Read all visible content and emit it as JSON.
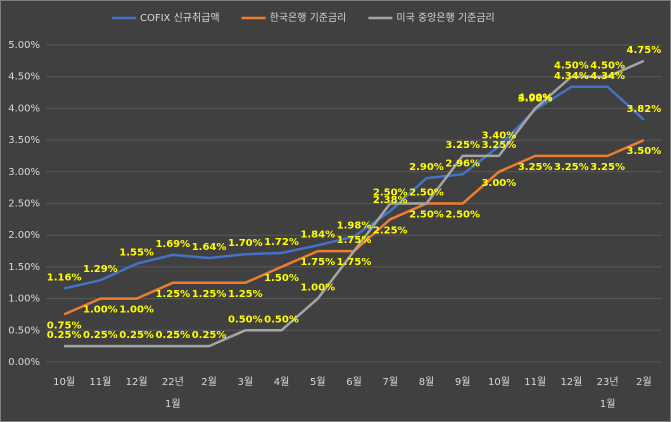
{
  "chart_data": {
    "type": "line",
    "categories": [
      "10월",
      "11월",
      "12월",
      [
        "22년",
        "1월"
      ],
      "2월",
      "3월",
      "4월",
      "5월",
      "6월",
      "7월",
      "8월",
      "9월",
      "10월",
      "11월",
      "12월",
      [
        "23년",
        "1월"
      ],
      "2월"
    ],
    "series": [
      {
        "name": "COFIX 신규취급액",
        "color": "#4472c4",
        "values": [
          1.16,
          1.29,
          1.55,
          1.69,
          1.64,
          1.7,
          1.72,
          1.84,
          1.98,
          2.38,
          2.9,
          2.96,
          3.4,
          3.98,
          4.34,
          4.34,
          3.82
        ],
        "value_labels": [
          "1.16%",
          "1.29%",
          "1.55%",
          "1.69%",
          "1.64%",
          "1.70%",
          "1.72%",
          "1.84%",
          "1.98%",
          "2.38%",
          "2.90%",
          "2.96%",
          "3.40%",
          "3.98%",
          "4.34%",
          "4.34%",
          "3.82%"
        ]
      },
      {
        "name": "한국은행 기준금리",
        "color": "#ed7d31",
        "values": [
          0.75,
          1.0,
          1.0,
          1.25,
          1.25,
          1.25,
          1.5,
          1.75,
          1.75,
          2.25,
          2.5,
          2.5,
          3.0,
          3.25,
          3.25,
          3.25,
          3.5
        ],
        "value_labels": [
          "0.75%",
          "1.00%",
          "1.00%",
          "1.25%",
          "1.25%",
          "1.25%",
          "1.50%",
          "1.75%",
          "1.75%",
          "2.25%",
          "2.50%",
          "2.50%",
          "3.00%",
          "3.25%",
          "3.25%",
          "3.25%",
          "3.50%"
        ]
      },
      {
        "name": "미국 중앙은행 기준금리",
        "color": "#a5a5a5",
        "values": [
          0.25,
          0.25,
          0.25,
          0.25,
          0.25,
          0.5,
          0.5,
          1.0,
          1.75,
          2.5,
          2.5,
          3.25,
          3.25,
          4.0,
          4.5,
          4.5,
          4.75
        ],
        "value_labels": [
          "0.25%",
          "0.25%",
          "0.25%",
          "0.25%",
          "0.25%",
          "0.50%",
          "0.50%",
          "1.00%",
          "1.75%",
          "2.50%",
          "2.50%",
          "3.25%",
          "3.25%",
          "4.00%",
          "4.50%",
          "4.50%",
          "4.75%"
        ]
      }
    ],
    "ylim": [
      0,
      5
    ],
    "yticks": [
      {
        "value": 0,
        "label": "0.00%"
      },
      {
        "value": 0.5,
        "label": "0.50%"
      },
      {
        "value": 1,
        "label": "1.00%"
      },
      {
        "value": 1.5,
        "label": "1.50%"
      },
      {
        "value": 2,
        "label": "2.00%"
      },
      {
        "value": 2.5,
        "label": "2.50%"
      },
      {
        "value": 3,
        "label": "3.00%"
      },
      {
        "value": 3.5,
        "label": "3.50%"
      },
      {
        "value": 4,
        "label": "4.00%"
      },
      {
        "value": 4.5,
        "label": "4.50%"
      },
      {
        "value": 5,
        "label": "5.00%"
      }
    ],
    "grid": true,
    "legend": "top"
  }
}
